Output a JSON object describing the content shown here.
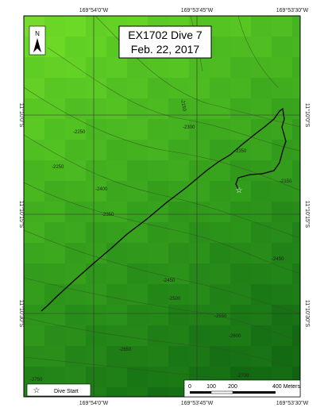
{
  "title": [
    "EX1702 Dive 7",
    "Feb. 22, 2017"
  ],
  "coordinates": {
    "top": [
      "169°54'0\"W",
      "169°53'45\"W",
      "169°53'30\"W"
    ],
    "bottom": [
      "169°54'0\"W",
      "169°53'45\"W",
      "169°53'30\"W"
    ],
    "left": [
      "11°10'0\"S",
      "11°10'15\"S",
      "11°10'30\"S"
    ],
    "right": [
      "11°10'0\"S",
      "11°10'15\"S",
      "11°10'30\"S"
    ]
  },
  "contour_labels": [
    "-2150",
    "-2250",
    "-2300",
    "-2350",
    "-2250",
    "-2400",
    "-2350",
    "-2150",
    "-2450",
    "-2500",
    "-2550",
    "-2600",
    "-2650",
    "-2700",
    "-2750",
    "-2450"
  ],
  "north_arrow": "N",
  "legend": {
    "label": "Dive Start"
  },
  "scale_bar": {
    "labels": [
      "0",
      "100",
      "200",
      "400 Meters"
    ]
  }
}
